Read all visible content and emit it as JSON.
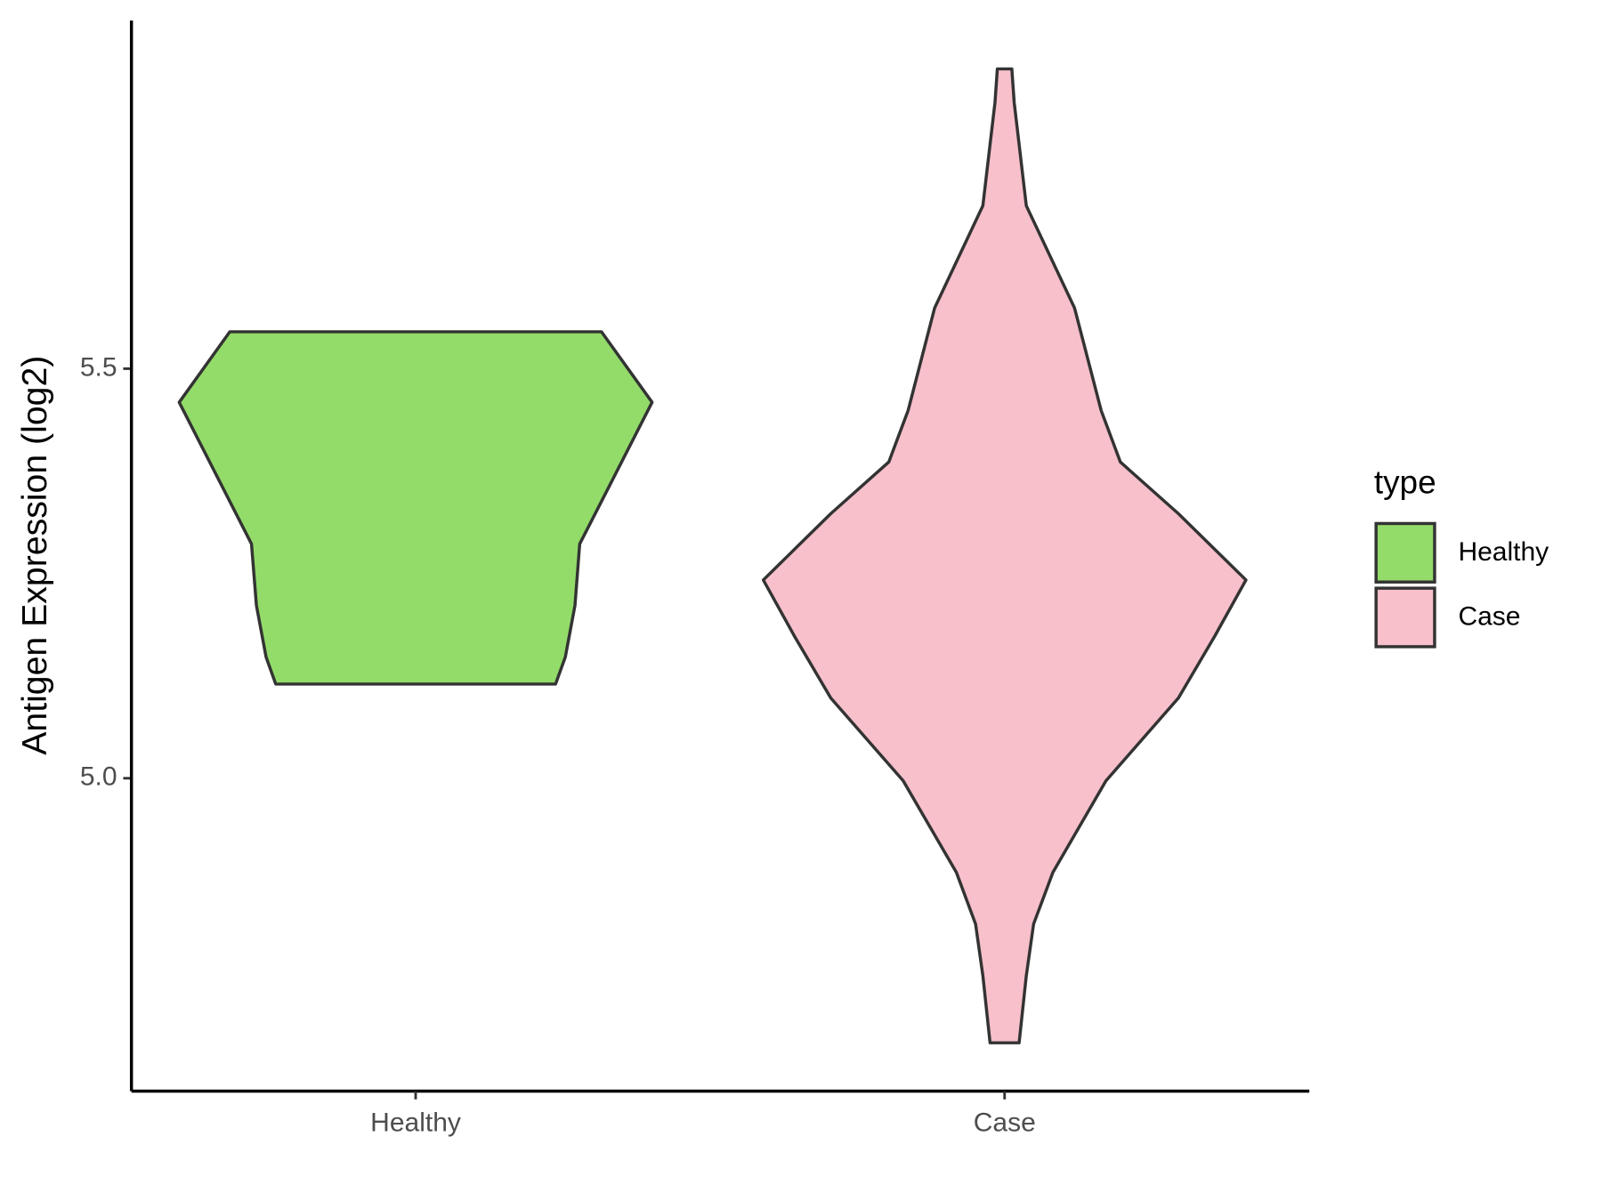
{
  "chart_data": {
    "type": "violin",
    "y_label": "Antigen Expression (log2)",
    "categories": [
      "Healthy",
      "Case"
    ],
    "legend_title": "type",
    "legend": "right",
    "ylim": [
      4.618,
      5.925
    ],
    "yticks": [
      {
        "value": 5,
        "label": "5.0"
      },
      5.5
    ],
    "series": [
      {
        "name": "Healthy",
        "color": "#93dc6a",
        "y": [
          5.545,
          5.459,
          5.361,
          5.286,
          5.211,
          5.148,
          5.115
        ],
        "density": [
          0.77,
          0.98,
          0.81,
          0.68,
          0.66,
          0.62,
          0.58
        ]
      },
      {
        "name": "Case",
        "color": "#f7c0cb",
        "y": [
          5.866,
          5.825,
          5.699,
          5.574,
          5.449,
          5.386,
          5.323,
          5.242,
          5.173,
          5.098,
          4.997,
          4.885,
          4.822,
          4.759,
          4.677
        ],
        "density": [
          0.03,
          0.04,
          0.09,
          0.29,
          0.4,
          0.48,
          0.72,
          1.0,
          0.87,
          0.72,
          0.42,
          0.2,
          0.12,
          0.09,
          0.06
        ]
      }
    ]
  }
}
